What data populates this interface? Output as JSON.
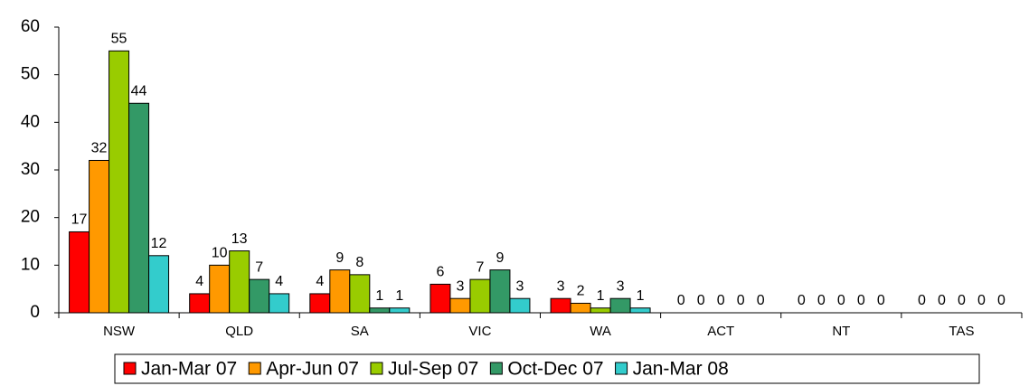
{
  "chart_data": {
    "type": "bar",
    "categories": [
      "NSW",
      "QLD",
      "SA",
      "VIC",
      "WA",
      "ACT",
      "NT",
      "TAS"
    ],
    "series": [
      {
        "name": "Jan-Mar 07",
        "color": "#ff0000",
        "values": [
          17,
          4,
          4,
          6,
          3,
          0,
          0,
          0
        ]
      },
      {
        "name": "Apr-Jun 07",
        "color": "#ff9900",
        "values": [
          32,
          10,
          9,
          3,
          2,
          0,
          0,
          0
        ]
      },
      {
        "name": "Jul-Sep 07",
        "color": "#99cc00",
        "values": [
          55,
          13,
          8,
          7,
          1,
          0,
          0,
          0
        ]
      },
      {
        "name": "Oct-Dec 07",
        "color": "#339966",
        "values": [
          44,
          7,
          1,
          9,
          3,
          0,
          0,
          0
        ]
      },
      {
        "name": "Jan-Mar 08",
        "color": "#33cccc",
        "values": [
          12,
          4,
          1,
          3,
          1,
          0,
          0,
          0
        ]
      }
    ],
    "ylim": [
      0,
      60
    ],
    "yticks": [
      0,
      10,
      20,
      30,
      40,
      50,
      60
    ],
    "grid": false,
    "legend": "bottom"
  }
}
